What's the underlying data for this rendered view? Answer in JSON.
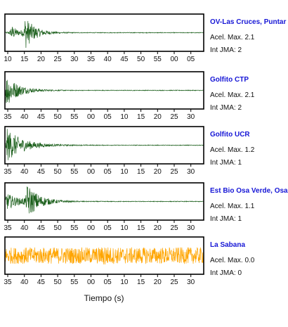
{
  "chart_data": {
    "type": "line",
    "xlabel": "Tiempo (s)",
    "colors": {
      "recorded": "#1a5e1a",
      "no_record": "#ffa500",
      "station_name": "#1616d6"
    },
    "panels": [
      {
        "station": "OV-Las Cruces, Puntar",
        "pga_text": "Acel. Max. 2.1",
        "jma_text": "Int JMA: 2",
        "color": "#1a5e1a",
        "tick_labels": [
          "10",
          "15",
          "20",
          "25",
          "30",
          "35",
          "40",
          "45",
          "50",
          "55",
          "00",
          "05"
        ],
        "bursts": [
          {
            "t": 0.03,
            "amp": 0.5,
            "decay": 0.03
          },
          {
            "t": 0.1,
            "amp": 1.0,
            "decay": 0.05
          }
        ],
        "noise": 0.02
      },
      {
        "station": "Golfito CTP",
        "pga_text": "Acel. Max. 2.1",
        "jma_text": "Int JMA: 2",
        "color": "#1a5e1a",
        "tick_labels": [
          "35",
          "40",
          "45",
          "50",
          "55",
          "00",
          "05",
          "10",
          "15",
          "20",
          "25",
          "30"
        ],
        "bursts": [
          {
            "t": 0.005,
            "amp": 1.0,
            "decay": 0.06
          }
        ],
        "noise": 0.02
      },
      {
        "station": "Golfito UCR",
        "pga_text": "Acel. Max. 1.2",
        "jma_text": "Int JMA: 1",
        "color": "#1a5e1a",
        "tick_labels": [
          "35",
          "40",
          "45",
          "50",
          "55",
          "00",
          "05",
          "10",
          "15",
          "20",
          "25",
          "30"
        ],
        "bursts": [
          {
            "t": 0.01,
            "amp": 1.0,
            "decay": 0.08
          }
        ],
        "noise": 0.02
      },
      {
        "station": "Est Bio Osa Verde, Osa",
        "pga_text": "Acel. Max. 1.1",
        "jma_text": "Int JMA: 1",
        "color": "#1a5e1a",
        "tick_labels": [
          "35",
          "40",
          "45",
          "50",
          "55",
          "00",
          "05",
          "10",
          "15",
          "20",
          "25",
          "30"
        ],
        "bursts": [
          {
            "t": 0.005,
            "amp": 0.55,
            "decay": 0.06
          },
          {
            "t": 0.11,
            "amp": 1.0,
            "decay": 0.06
          }
        ],
        "noise": 0.02
      },
      {
        "station": "La Sabana",
        "pga_text": "Acel. Max. 0.0",
        "jma_text": "Int JMA: 0",
        "color": "#ffa500",
        "tick_labels": [
          "35",
          "40",
          "45",
          "50",
          "55",
          "00",
          "05",
          "10",
          "15",
          "20",
          "25",
          "30"
        ],
        "bursts": [
          {
            "t": 0.5,
            "amp": 0.35,
            "decay": 0.01
          }
        ],
        "noise": 0.5
      }
    ]
  }
}
